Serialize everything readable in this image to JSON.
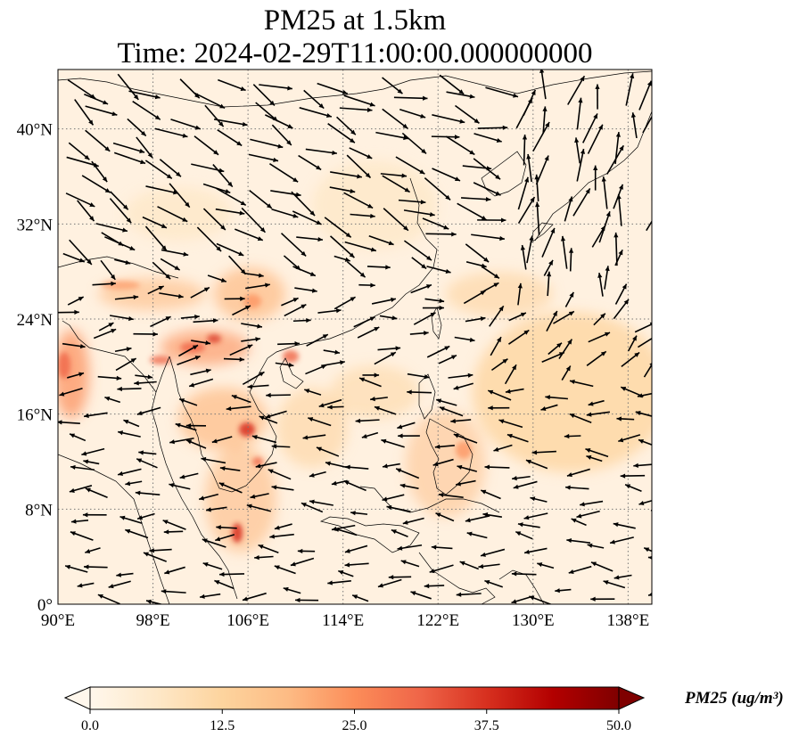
{
  "figure": {
    "title_line1": "PM25 at 1.5km",
    "title_line2": "Time: 2024-02-29T11:00:00.000000000"
  },
  "map": {
    "lon_range": [
      90,
      140
    ],
    "lat_range": [
      0,
      45
    ],
    "lon_ticks": [
      {
        "value": 90,
        "label": "90°E"
      },
      {
        "value": 98,
        "label": "98°E"
      },
      {
        "value": 106,
        "label": "106°E"
      },
      {
        "value": 114,
        "label": "114°E"
      },
      {
        "value": 122,
        "label": "122°E"
      },
      {
        "value": 130,
        "label": "130°E"
      },
      {
        "value": 138,
        "label": "138°E"
      }
    ],
    "lat_ticks": [
      {
        "value": 0,
        "label": "0°"
      },
      {
        "value": 8,
        "label": "8°N"
      },
      {
        "value": 16,
        "label": "16°N"
      },
      {
        "value": 24,
        "label": "24°N"
      },
      {
        "value": 32,
        "label": "32°N"
      },
      {
        "value": 40,
        "label": "40°N"
      }
    ],
    "gridlines": "dotted",
    "field": "PM25",
    "wind_vectors": true
  },
  "colorbar": {
    "label": "PM25 (ug/m³)",
    "colormap": "OrRd",
    "colors": [
      "#fff7ec",
      "#fee8c8",
      "#fdd49e",
      "#fdbb84",
      "#fc8d59",
      "#ef6548",
      "#d7301f",
      "#b30000",
      "#7f0000"
    ],
    "extend": "both",
    "range": [
      0.0,
      50.0
    ],
    "ticks": [
      "0.0",
      "12.5",
      "25.0",
      "37.5",
      "50.0"
    ]
  },
  "colors": {
    "background_field": "#fff1e0",
    "coastline": "#000000",
    "grid": "#777777",
    "arrow": "#000000"
  }
}
